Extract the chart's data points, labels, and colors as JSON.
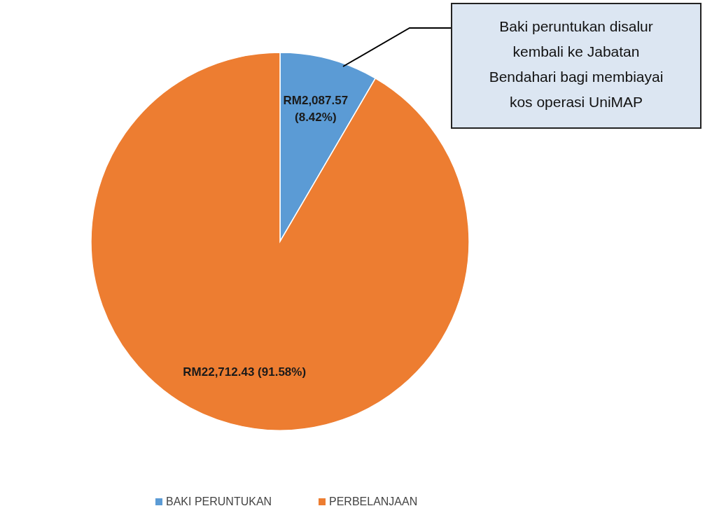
{
  "chart_data": {
    "type": "pie",
    "categories": [
      "BAKI PERUNTUKAN",
      "PERBELANJAAN"
    ],
    "values": [
      2087.57,
      22712.43
    ],
    "colors": [
      "#5b9bd5",
      "#ed7d31"
    ],
    "value_labels": [
      "RM2,087.57 (8.42%)",
      "RM22,712.43 (91.58%)"
    ],
    "annotations": [
      "Baki peruntukan disalur kembali ke Jabatan Bendahari bagi membiayai kos operasi UniMAP"
    ],
    "legend": "bottom"
  }
}
